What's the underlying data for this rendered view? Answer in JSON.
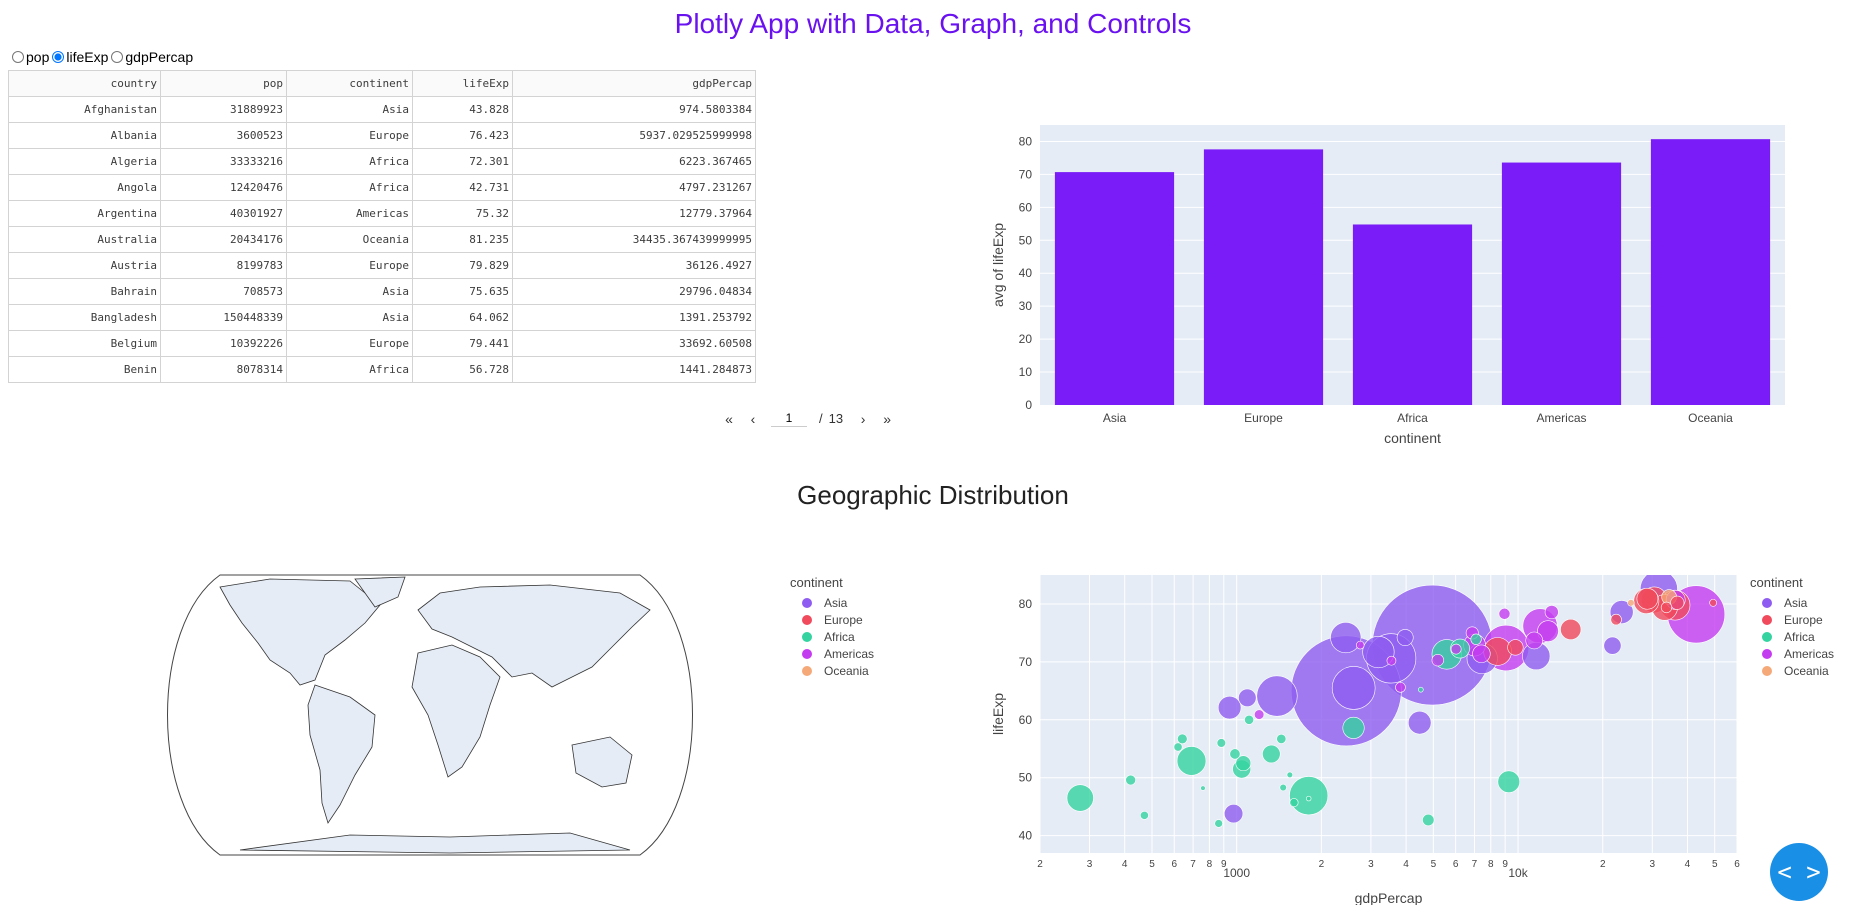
{
  "app": {
    "title": "Plotly App with Data, Graph, and Controls"
  },
  "controls": {
    "options": [
      "pop",
      "lifeExp",
      "gdpPercap"
    ],
    "selected": "lifeExp"
  },
  "table": {
    "columns": [
      "country",
      "pop",
      "continent",
      "lifeExp",
      "gdpPercap"
    ],
    "rows": [
      [
        "Afghanistan",
        "31889923",
        "Asia",
        "43.828",
        "974.5803384"
      ],
      [
        "Albania",
        "3600523",
        "Europe",
        "76.423",
        "5937.029525999998"
      ],
      [
        "Algeria",
        "33333216",
        "Africa",
        "72.301",
        "6223.367465"
      ],
      [
        "Angola",
        "12420476",
        "Africa",
        "42.731",
        "4797.231267"
      ],
      [
        "Argentina",
        "40301927",
        "Americas",
        "75.32",
        "12779.37964"
      ],
      [
        "Australia",
        "20434176",
        "Oceania",
        "81.235",
        "34435.367439999995"
      ],
      [
        "Austria",
        "8199783",
        "Europe",
        "79.829",
        "36126.4927"
      ],
      [
        "Bahrain",
        "708573",
        "Asia",
        "75.635",
        "29796.04834"
      ],
      [
        "Bangladesh",
        "150448339",
        "Asia",
        "64.062",
        "1391.253792"
      ],
      [
        "Belgium",
        "10392226",
        "Europe",
        "79.441",
        "33692.60508"
      ],
      [
        "Benin",
        "8078314",
        "Africa",
        "56.728",
        "1441.284873"
      ]
    ]
  },
  "pagination": {
    "first": "«",
    "prev": "‹",
    "next": "›",
    "last": "»",
    "current": "1",
    "separator": "/",
    "total": "13"
  },
  "geo_title": "Geographic Distribution",
  "legend": {
    "title": "continent",
    "items": [
      {
        "name": "Asia",
        "color": "#8e5cf0"
      },
      {
        "name": "Europe",
        "color": "#f04a5c"
      },
      {
        "name": "Africa",
        "color": "#35d3a0"
      },
      {
        "name": "Americas",
        "color": "#c43cf0"
      },
      {
        "name": "Oceania",
        "color": "#f5a878"
      }
    ]
  },
  "code_button": {
    "icon": "code-icon",
    "label": "< >"
  },
  "chart_data": [
    {
      "type": "bar",
      "categories": [
        "Asia",
        "Europe",
        "Africa",
        "Americas",
        "Oceania"
      ],
      "values": [
        70.7,
        77.6,
        54.8,
        73.6,
        80.7
      ],
      "xlabel": "continent",
      "ylabel": "avg of lifeExp",
      "ylim": [
        0,
        85
      ],
      "yticks": [
        0,
        10,
        20,
        30,
        40,
        50,
        60,
        70,
        80
      ],
      "color": "#7a1cf7",
      "grid": true
    },
    {
      "type": "map",
      "projection": "natural earth",
      "land_color": "#e5ecf6"
    },
    {
      "type": "scatter",
      "xlabel": "gdpPercap",
      "ylabel": "lifeExp",
      "xscale": "log",
      "xlim": [
        200,
        60000
      ],
      "ylim": [
        37,
        85
      ],
      "yticks": [
        40,
        50,
        60,
        70,
        80
      ],
      "xtick_labels": [
        {
          "v": 200,
          "t": "2"
        },
        {
          "v": 300,
          "t": "3"
        },
        {
          "v": 400,
          "t": "4"
        },
        {
          "v": 500,
          "t": "5"
        },
        {
          "v": 600,
          "t": "6"
        },
        {
          "v": 700,
          "t": "7"
        },
        {
          "v": 800,
          "t": "8"
        },
        {
          "v": 900,
          "t": "9"
        },
        {
          "v": 1000,
          "t": "1000"
        },
        {
          "v": 2000,
          "t": "2"
        },
        {
          "v": 3000,
          "t": "3"
        },
        {
          "v": 4000,
          "t": "4"
        },
        {
          "v": 5000,
          "t": "5"
        },
        {
          "v": 6000,
          "t": "6"
        },
        {
          "v": 7000,
          "t": "7"
        },
        {
          "v": 8000,
          "t": "8"
        },
        {
          "v": 9000,
          "t": "9"
        },
        {
          "v": 10000,
          "t": "10k"
        },
        {
          "v": 20000,
          "t": "2"
        },
        {
          "v": 30000,
          "t": "3"
        },
        {
          "v": 40000,
          "t": "4"
        },
        {
          "v": 50000,
          "t": "5"
        },
        {
          "v": 60000,
          "t": "6"
        }
      ],
      "size_by": "pop",
      "points": [
        {
          "c": "Asia",
          "x": 2452,
          "y": 65.0,
          "pop": 1110000000
        },
        {
          "c": "Asia",
          "x": 4959,
          "y": 72.9,
          "pop": 1318000000
        },
        {
          "c": "Asia",
          "x": 3541,
          "y": 70.6,
          "pop": 223000000
        },
        {
          "c": "Asia",
          "x": 2605,
          "y": 65.5,
          "pop": 169000000
        },
        {
          "c": "Asia",
          "x": 1391,
          "y": 64.1,
          "pop": 150000000
        },
        {
          "c": "Asia",
          "x": 31656,
          "y": 82.6,
          "pop": 127000000
        },
        {
          "c": "Asia",
          "x": 3190,
          "y": 71.7,
          "pop": 91000000
        },
        {
          "c": "Asia",
          "x": 975,
          "y": 43.8,
          "pop": 31900000
        },
        {
          "c": "Asia",
          "x": 11606,
          "y": 71.0,
          "pop": 69500000
        },
        {
          "c": "Asia",
          "x": 7458,
          "y": 70.6,
          "pop": 85000000
        },
        {
          "c": "Asia",
          "x": 2442,
          "y": 74.2,
          "pop": 85300000
        },
        {
          "c": "Asia",
          "x": 4471,
          "y": 59.5,
          "pop": 47800000
        },
        {
          "c": "Asia",
          "x": 23348,
          "y": 78.6,
          "pop": 49000000
        },
        {
          "c": "Asia",
          "x": 1091,
          "y": 63.8,
          "pop": 28900000
        },
        {
          "c": "Asia",
          "x": 3970,
          "y": 74.2,
          "pop": 24000000
        },
        {
          "c": "Asia",
          "x": 21654,
          "y": 72.8,
          "pop": 27600000
        },
        {
          "c": "Asia",
          "x": 944,
          "y": 62.1,
          "pop": 47800000
        },
        {
          "c": "Europe",
          "x": 36126,
          "y": 79.8,
          "pop": 82400000
        },
        {
          "c": "Europe",
          "x": 30470,
          "y": 80.7,
          "pop": 61100000
        },
        {
          "c": "Europe",
          "x": 33203,
          "y": 79.4,
          "pop": 60800000
        },
        {
          "c": "Europe",
          "x": 28570,
          "y": 80.5,
          "pop": 58100000
        },
        {
          "c": "Europe",
          "x": 28821,
          "y": 80.9,
          "pop": 40400000
        },
        {
          "c": "Europe",
          "x": 15390,
          "y": 75.6,
          "pop": 38500000
        },
        {
          "c": "Europe",
          "x": 9786,
          "y": 72.5,
          "pop": 22300000
        },
        {
          "c": "Europe",
          "x": 8458,
          "y": 71.8,
          "pop": 71200000
        },
        {
          "c": "Europe",
          "x": 36798,
          "y": 80.2,
          "pop": 16600000
        },
        {
          "c": "Europe",
          "x": 33692,
          "y": 79.4,
          "pop": 10400000
        },
        {
          "c": "Europe",
          "x": 22316,
          "y": 77.3,
          "pop": 10600000
        },
        {
          "c": "Europe",
          "x": 49357,
          "y": 80.2,
          "pop": 4600000
        },
        {
          "c": "Africa",
          "x": 1803,
          "y": 46.9,
          "pop": 135000000
        },
        {
          "c": "Africa",
          "x": 5581,
          "y": 71.3,
          "pop": 80300000
        },
        {
          "c": "Africa",
          "x": 691,
          "y": 52.9,
          "pop": 76500000
        },
        {
          "c": "Africa",
          "x": 278,
          "y": 46.5,
          "pop": 64600000
        },
        {
          "c": "Africa",
          "x": 9270,
          "y": 49.3,
          "pop": 43900000
        },
        {
          "c": "Africa",
          "x": 2602,
          "y": 58.6,
          "pop": 42300000
        },
        {
          "c": "Africa",
          "x": 6223,
          "y": 72.3,
          "pop": 33300000
        },
        {
          "c": "Africa",
          "x": 1328,
          "y": 54.1,
          "pop": 29200000
        },
        {
          "c": "Africa",
          "x": 1056,
          "y": 52.5,
          "pop": 20700000
        },
        {
          "c": "Africa",
          "x": 1042,
          "y": 51.5,
          "pop": 30300000
        },
        {
          "c": "Africa",
          "x": 1441,
          "y": 56.7,
          "pop": 8100000
        },
        {
          "c": "Africa",
          "x": 4797,
          "y": 42.7,
          "pop": 12400000
        },
        {
          "c": "Africa",
          "x": 420,
          "y": 49.6,
          "pop": 9100000
        },
        {
          "c": "Africa",
          "x": 470,
          "y": 43.5,
          "pop": 6100000
        },
        {
          "c": "Africa",
          "x": 863,
          "y": 42.1,
          "pop": 5700000
        },
        {
          "c": "Africa",
          "x": 1463,
          "y": 48.3,
          "pop": 4200000
        },
        {
          "c": "Africa",
          "x": 7093,
          "y": 73.9,
          "pop": 10300000
        },
        {
          "c": "Africa",
          "x": 641,
          "y": 56.7,
          "pop": 8900000
        },
        {
          "c": "Africa",
          "x": 1107,
          "y": 60.0,
          "pop": 7800000
        },
        {
          "c": "Africa",
          "x": 619,
          "y": 55.3,
          "pop": 6300000
        },
        {
          "c": "Africa",
          "x": 759,
          "y": 48.2,
          "pop": 2000000
        },
        {
          "c": "Africa",
          "x": 1545,
          "y": 50.5,
          "pop": 3100000
        },
        {
          "c": "Africa",
          "x": 882,
          "y": 56.0,
          "pop": 7000000
        },
        {
          "c": "Africa",
          "x": 4513,
          "y": 65.2,
          "pop": 2300000
        },
        {
          "c": "Africa",
          "x": 1803,
          "y": 46.4,
          "pop": 2100000
        },
        {
          "c": "Africa",
          "x": 986,
          "y": 54.1,
          "pop": 9900000
        },
        {
          "c": "Africa",
          "x": 1598,
          "y": 45.7,
          "pop": 6500000
        },
        {
          "c": "Americas",
          "x": 42952,
          "y": 78.2,
          "pop": 301000000
        },
        {
          "c": "Americas",
          "x": 9066,
          "y": 72.4,
          "pop": 190000000
        },
        {
          "c": "Americas",
          "x": 11978,
          "y": 76.2,
          "pop": 108700000
        },
        {
          "c": "Americas",
          "x": 7007,
          "y": 72.9,
          "pop": 44200000
        },
        {
          "c": "Americas",
          "x": 12779,
          "y": 75.3,
          "pop": 40300000
        },
        {
          "c": "Americas",
          "x": 36319,
          "y": 80.7,
          "pop": 33400000
        },
        {
          "c": "Americas",
          "x": 7409,
          "y": 71.4,
          "pop": 28700000
        },
        {
          "c": "Americas",
          "x": 11416,
          "y": 73.7,
          "pop": 26100000
        },
        {
          "c": "Americas",
          "x": 13172,
          "y": 78.6,
          "pop": 16300000
        },
        {
          "c": "Americas",
          "x": 6873,
          "y": 75.0,
          "pop": 13800000
        },
        {
          "c": "Americas",
          "x": 5186,
          "y": 70.3,
          "pop": 12600000
        },
        {
          "c": "Americas",
          "x": 8948,
          "y": 78.3,
          "pop": 11400000
        },
        {
          "c": "Americas",
          "x": 3820,
          "y": 65.6,
          "pop": 9100000
        },
        {
          "c": "Americas",
          "x": 1202,
          "y": 60.9,
          "pop": 8500000
        },
        {
          "c": "Americas",
          "x": 6025,
          "y": 72.2,
          "pop": 9300000
        },
        {
          "c": "Americas",
          "x": 3548,
          "y": 70.2,
          "pop": 7500000
        },
        {
          "c": "Americas",
          "x": 2749,
          "y": 72.9,
          "pop": 5700000
        },
        {
          "c": "Oceania",
          "x": 34435,
          "y": 81.2,
          "pop": 20400000
        },
        {
          "c": "Oceania",
          "x": 25185,
          "y": 80.2,
          "pop": 4100000
        }
      ]
    }
  ]
}
